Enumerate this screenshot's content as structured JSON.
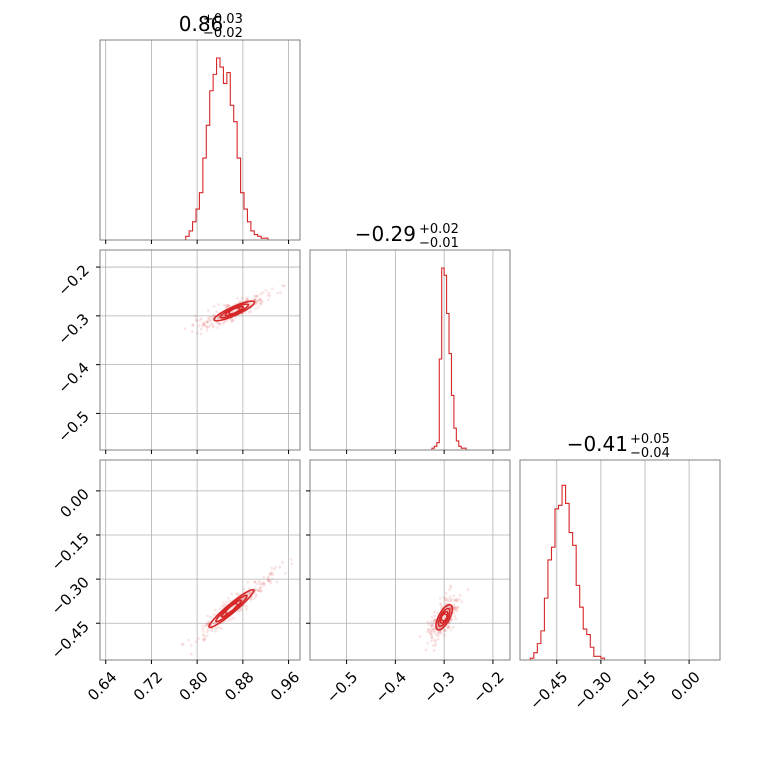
{
  "chart_data": {
    "type": "corner",
    "color": "#d62728",
    "grid": true,
    "parameters": [
      {
        "title": {
          "value": "0.86",
          "upper": "+0.03",
          "lower": "−0.02"
        },
        "median": 0.86,
        "err_plus": 0.03,
        "err_minus": 0.02,
        "range": [
          0.63,
          0.98
        ],
        "ticks": [
          0.64,
          0.72,
          0.8,
          0.88,
          0.96
        ],
        "tick_labels": [
          "0.64",
          "0.72",
          "0.80",
          "0.88",
          "0.96"
        ],
        "hist": {
          "bins": [
            0.78,
            0.786,
            0.792,
            0.798,
            0.804,
            0.81,
            0.816,
            0.822,
            0.828,
            0.834,
            0.84,
            0.846,
            0.852,
            0.858,
            0.864,
            0.87,
            0.876,
            0.882,
            0.888,
            0.894,
            0.9,
            0.906,
            0.912,
            0.918,
            0.924,
            0.93
          ],
          "counts": [
            0.02,
            0.05,
            0.1,
            0.17,
            0.26,
            0.45,
            0.63,
            0.82,
            0.91,
            1.0,
            0.95,
            0.86,
            0.92,
            0.74,
            0.65,
            0.45,
            0.26,
            0.17,
            0.1,
            0.05,
            0.03,
            0.02,
            0.01,
            0.01,
            0.0
          ]
        }
      },
      {
        "title": {
          "value": "−0.29",
          "upper": "+0.02",
          "lower": "−0.01"
        },
        "median": -0.29,
        "err_plus": 0.02,
        "err_minus": 0.01,
        "range": [
          -0.575,
          -0.165
        ],
        "ticks": [
          -0.5,
          -0.4,
          -0.3,
          -0.2
        ],
        "tick_labels": [
          "−0.5",
          "−0.4",
          "−0.3",
          "−0.2"
        ],
        "hist": {
          "bins": [
            -0.325,
            -0.32,
            -0.315,
            -0.31,
            -0.305,
            -0.3,
            -0.295,
            -0.29,
            -0.285,
            -0.28,
            -0.275,
            -0.27,
            -0.265,
            -0.26,
            -0.255,
            -0.25
          ],
          "counts": [
            0.01,
            0.02,
            0.04,
            0.5,
            1.0,
            0.96,
            0.75,
            0.53,
            0.3,
            0.12,
            0.05,
            0.02,
            0.01,
            0.01,
            0.0
          ]
        }
      },
      {
        "title": {
          "value": "−0.41",
          "upper": "+0.05",
          "lower": "−0.04"
        },
        "median": -0.41,
        "err_plus": 0.05,
        "err_minus": 0.04,
        "range": [
          -0.575,
          0.105
        ],
        "ticks": [
          -0.45,
          -0.3,
          -0.15,
          0.0
        ],
        "tick_labels": [
          "−0.45",
          "−0.30",
          "−0.15",
          "0.00"
        ],
        "hist": {
          "bins": [
            -0.54,
            -0.528,
            -0.516,
            -0.504,
            -0.492,
            -0.48,
            -0.468,
            -0.456,
            -0.444,
            -0.432,
            -0.42,
            -0.408,
            -0.396,
            -0.384,
            -0.372,
            -0.36,
            -0.348,
            -0.336,
            -0.324,
            -0.312,
            -0.3,
            -0.288,
            -0.276
          ],
          "counts": [
            0.01,
            0.04,
            0.09,
            0.16,
            0.34,
            0.55,
            0.62,
            0.83,
            0.85,
            0.96,
            0.86,
            0.7,
            0.63,
            0.41,
            0.29,
            0.17,
            0.14,
            0.07,
            0.02,
            0.02,
            0.01,
            0.0
          ]
        }
      }
    ],
    "scatter": [
      {
        "row": 1,
        "col": 0,
        "direction": "positive",
        "center": [
          0.865,
          -0.29
        ]
      },
      {
        "row": 2,
        "col": 0,
        "direction": "positive",
        "center": [
          0.86,
          -0.4
        ]
      },
      {
        "row": 2,
        "col": 1,
        "direction": "positive",
        "center": [
          -0.3,
          -0.43
        ]
      }
    ]
  }
}
